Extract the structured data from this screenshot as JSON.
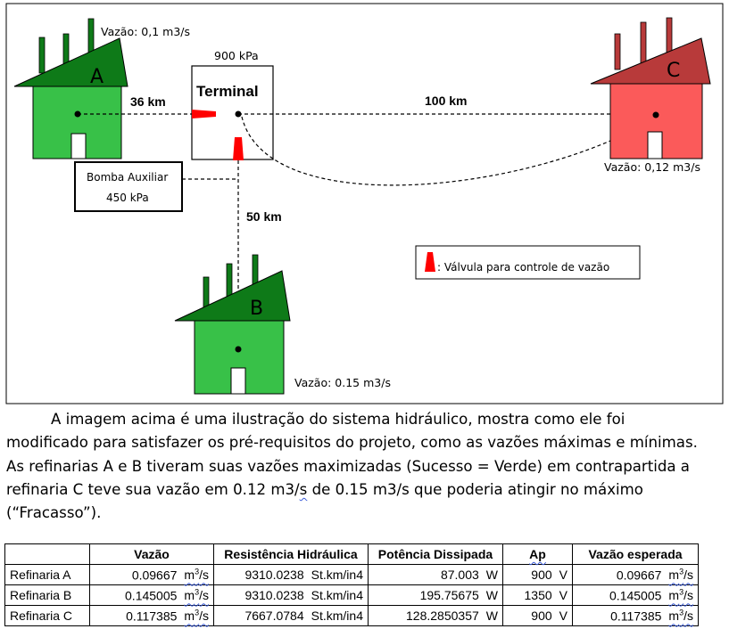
{
  "diagram": {
    "refinery_a": {
      "letter": "A",
      "flow": "Vazão: 0,1 m3/s"
    },
    "refinery_b": {
      "letter": "B",
      "flow": "Vazão: 0.15 m3/s"
    },
    "refinery_c": {
      "letter": "C",
      "flow": "Vazão: 0,12 m3/s"
    },
    "terminal": {
      "label": "Terminal",
      "pressure": "900 kPa"
    },
    "pump": {
      "line1": "Bomba Auxiliar",
      "line2": "450 kPa"
    },
    "distances": {
      "ab": "36 km",
      "ac": "100 km",
      "b": "50 km"
    },
    "legend": {
      "text": ": Válvula para controle de vazão"
    },
    "colors": {
      "success_roof": "#0e7a18",
      "success_wall": "#38c148",
      "fail_roof": "#b83a3a",
      "fail_wall": "#fb5a5a",
      "valve": "#ff0000"
    }
  },
  "caption": {
    "p1": "A imagem acima é uma ilustração do sistema hidráulico, mostra como ele foi",
    "p2": "modificado para satisfazer os pré-requisitos do projeto, como as vazões máximas e mínimas.",
    "p3": "As refinarias A e B tiveram suas vazões maximizadas (Sucesso = Verde) em contrapartida a",
    "p4a": "refinaria C teve sua vazão em 0.12 m3/",
    "p4b": "s",
    "p4c": " de 0.15 m3/s que poderia atingir no máximo",
    "p5": "(“Fracasso”)."
  },
  "table": {
    "headers": [
      "",
      "Vazão",
      "Resistência Hidráulica",
      "Potência Dissipada",
      "Ap",
      "Vazão esperada"
    ],
    "rows": [
      {
        "name": "Refinaria A",
        "flow": "0.09667",
        "flow_unit": "m",
        "res": "9310.0238",
        "res_unit": "St.km/in4",
        "power": "87.003",
        "power_unit": "W",
        "ap": "900",
        "ap_unit": "V",
        "exp": "0.09667",
        "exp_unit": "m"
      },
      {
        "name": "Refinaria B",
        "flow": "0.145005",
        "flow_unit": "m",
        "res": "9310.0238",
        "res_unit": "St.km/in4",
        "power": "195.75675",
        "power_unit": "W",
        "ap": "1350",
        "ap_unit": "V",
        "exp": "0.145005",
        "exp_unit": "m"
      },
      {
        "name": "Refinaria C",
        "flow": "0.117385",
        "flow_unit": "m",
        "res": "7667.0784",
        "res_unit": "St.km/in4",
        "power": "128.2850357",
        "power_unit": "W",
        "ap": "900",
        "ap_unit": "V",
        "exp": "0.117385",
        "exp_unit": "m"
      }
    ],
    "unit_sup": "3",
    "unit_tail": "/s"
  }
}
